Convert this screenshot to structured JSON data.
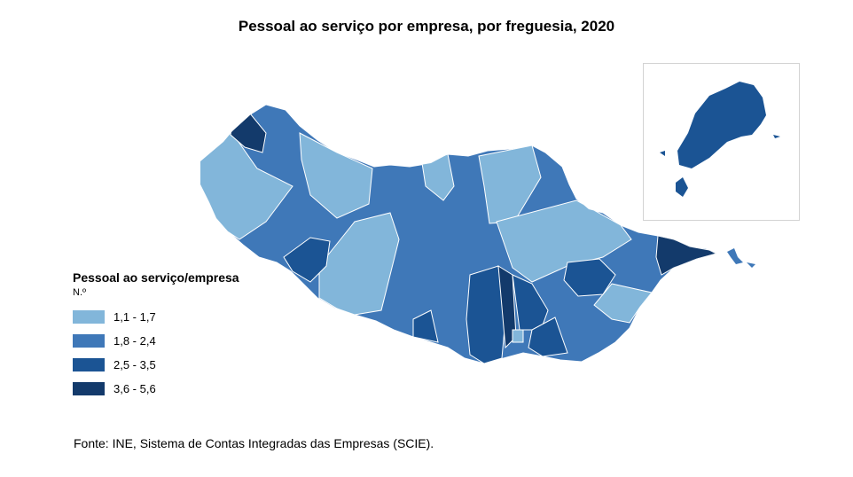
{
  "title": "Pessoal ao serviço por empresa, por freguesia, 2020",
  "legend": {
    "title": "Pessoal ao serviço/empresa",
    "unit": "N.º",
    "classes": [
      {
        "label": "1,1 - 1,7",
        "color": "#82b6da"
      },
      {
        "label": "1,8 - 2,4",
        "color": "#3f78b8"
      },
      {
        "label": "2,5 - 3,5",
        "color": "#1b5494"
      },
      {
        "label": "3,6 - 5,6",
        "color": "#133a6b"
      }
    ]
  },
  "inset_map": {
    "color": "#1b5494"
  },
  "source": "Fonte: INE, Sistema de Contas Integradas das Empresas (SCIE)."
}
